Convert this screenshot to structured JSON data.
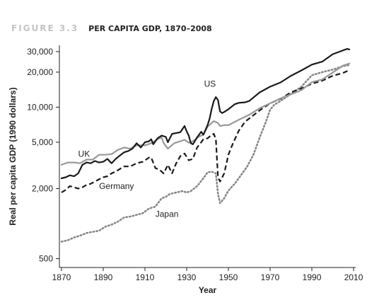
{
  "figure": {
    "number": "FIGURE 3.3",
    "title": "PER CAPITA GDP, 1870–2008"
  },
  "chart_data": {
    "type": "line",
    "title": "PER CAPITA GDP, 1870–2008",
    "xlabel": "Year",
    "ylabel": "Real per capita GDP (1990 dollars)",
    "y_scale": "log",
    "xlim": [
      1869,
      2011
    ],
    "ylim": [
      420,
      34000
    ],
    "x_ticks": [
      1870,
      1890,
      1910,
      1930,
      1950,
      1970,
      1990,
      2010
    ],
    "y_ticks": [
      500,
      2000,
      5000,
      10000,
      20000,
      30000
    ],
    "y_tick_labels": [
      "500",
      "2,000",
      "5,000",
      "10,000",
      "20,000",
      "30,000"
    ],
    "grid": false,
    "legend": "none (series labeled inline)",
    "series": [
      {
        "name": "US",
        "color": "#1a1a1a",
        "style": "solid",
        "x": [
          1870,
          1872,
          1874,
          1876,
          1878,
          1880,
          1882,
          1884,
          1886,
          1888,
          1890,
          1892,
          1894,
          1896,
          1898,
          1900,
          1902,
          1904,
          1906,
          1908,
          1910,
          1912,
          1913,
          1914,
          1916,
          1918,
          1920,
          1921,
          1923,
          1925,
          1927,
          1929,
          1930,
          1931,
          1932,
          1933,
          1935,
          1937,
          1938,
          1940,
          1941,
          1942,
          1943,
          1944,
          1945,
          1946,
          1947,
          1948,
          1950,
          1953,
          1955,
          1958,
          1960,
          1965,
          1970,
          1975,
          1980,
          1985,
          1990,
          1995,
          2000,
          2005,
          2007,
          2008
        ],
        "y": [
          2450,
          2500,
          2600,
          2550,
          2700,
          3200,
          3350,
          3300,
          3450,
          3350,
          3400,
          3600,
          3300,
          3600,
          3850,
          4100,
          4200,
          4400,
          4900,
          4500,
          5000,
          5100,
          5300,
          4800,
          5400,
          5700,
          5550,
          5000,
          5900,
          6000,
          6100,
          6900,
          6200,
          5700,
          4900,
          4800,
          5500,
          6150,
          5800,
          7000,
          8000,
          9700,
          11300,
          12200,
          11500,
          9200,
          8900,
          9100,
          9600,
          10600,
          10900,
          11000,
          11300,
          13400,
          15000,
          16300,
          18600,
          20700,
          23200,
          24600,
          28500,
          30800,
          31650,
          31300
        ]
      },
      {
        "name": "UK",
        "color": "#999999",
        "style": "solid",
        "x": [
          1870,
          1873,
          1876,
          1879,
          1882,
          1885,
          1888,
          1891,
          1894,
          1897,
          1900,
          1903,
          1906,
          1910,
          1913,
          1916,
          1918,
          1919,
          1921,
          1924,
          1927,
          1929,
          1931,
          1933,
          1936,
          1938,
          1940,
          1943,
          1945,
          1946,
          1948,
          1950,
          1955,
          1960,
          1965,
          1970,
          1975,
          1980,
          1985,
          1990,
          1995,
          2000,
          2005,
          2008
        ],
        "y": [
          3200,
          3350,
          3350,
          3300,
          3550,
          3550,
          3900,
          3900,
          3950,
          4300,
          4500,
          4400,
          4700,
          4700,
          4900,
          5300,
          5500,
          4900,
          4400,
          4900,
          5100,
          5250,
          4950,
          5100,
          5600,
          5800,
          6800,
          7600,
          7300,
          6900,
          7000,
          7000,
          7800,
          8600,
          9800,
          10800,
          11900,
          12900,
          14000,
          16400,
          17300,
          19800,
          22800,
          23700
        ]
      },
      {
        "name": "Germany",
        "color": "#1a1a1a",
        "style": "dashed",
        "x": [
          1870,
          1872,
          1874,
          1876,
          1878,
          1880,
          1882,
          1884,
          1886,
          1888,
          1890,
          1892,
          1894,
          1896,
          1898,
          1900,
          1903,
          1906,
          1909,
          1912,
          1913,
          1915,
          1917,
          1919,
          1921,
          1923,
          1925,
          1927,
          1929,
          1931,
          1933,
          1935,
          1937,
          1938,
          1940,
          1942,
          1943,
          1944,
          1945,
          1946,
          1948,
          1950,
          1952,
          1955,
          1958,
          1960,
          1965,
          1970,
          1975,
          1980,
          1985,
          1990,
          1995,
          2000,
          2005,
          2008
        ],
        "y": [
          1850,
          1950,
          2100,
          2050,
          2000,
          2050,
          2150,
          2200,
          2300,
          2400,
          2500,
          2550,
          2700,
          2800,
          2950,
          3100,
          3100,
          3300,
          3400,
          3700,
          3700,
          3000,
          2900,
          2700,
          3200,
          2700,
          3300,
          3800,
          4000,
          3500,
          3600,
          4500,
          5000,
          5300,
          5400,
          5800,
          5900,
          5300,
          2500,
          2300,
          2700,
          3900,
          4800,
          6300,
          7500,
          8000,
          9400,
          10800,
          11800,
          13400,
          14500,
          15900,
          16900,
          18600,
          19700,
          20800
        ]
      },
      {
        "name": "Japan",
        "color": "#888888",
        "style": "dotted",
        "x": [
          1870,
          1873,
          1876,
          1879,
          1882,
          1885,
          1888,
          1891,
          1894,
          1897,
          1900,
          1903,
          1906,
          1909,
          1912,
          1915,
          1918,
          1920,
          1922,
          1925,
          1928,
          1930,
          1932,
          1935,
          1938,
          1940,
          1942,
          1944,
          1945,
          1946,
          1948,
          1950,
          1953,
          1956,
          1959,
          1962,
          1965,
          1968,
          1970,
          1972,
          1975,
          1980,
          1985,
          1990,
          1995,
          2000,
          2005,
          2008
        ],
        "y": [
          700,
          720,
          760,
          790,
          830,
          850,
          870,
          940,
          980,
          1040,
          1130,
          1150,
          1190,
          1230,
          1350,
          1400,
          1650,
          1700,
          1800,
          1850,
          1900,
          1850,
          1900,
          2100,
          2450,
          2750,
          2800,
          2700,
          1800,
          1500,
          1650,
          1920,
          2200,
          2600,
          3100,
          3900,
          5500,
          7500,
          9500,
          10500,
          11300,
          13000,
          15000,
          18800,
          20000,
          21000,
          22500,
          23000
        ]
      }
    ],
    "annotations": [
      "US",
      "UK",
      "Germany",
      "Japan"
    ]
  }
}
